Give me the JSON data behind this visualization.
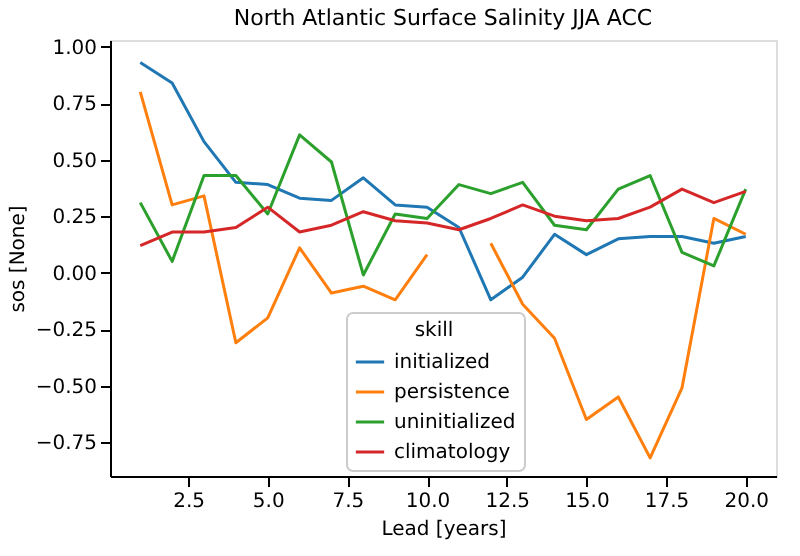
{
  "chart_data": {
    "type": "line",
    "title": "North Atlantic Surface Salinity JJA ACC",
    "xlabel": "Lead [years]",
    "ylabel": "sos [None]",
    "legend_title": "skill",
    "legend": "bottom",
    "grid": false,
    "x": [
      1,
      2,
      3,
      4,
      5,
      6,
      7,
      8,
      9,
      10,
      11,
      12,
      13,
      14,
      15,
      16,
      17,
      18,
      19,
      20
    ],
    "xlim": [
      0.05,
      20.95
    ],
    "xticks": [
      {
        "value": 2.5,
        "label": "2.5"
      },
      {
        "value": 5,
        "label": "5.0"
      },
      {
        "value": 7.5,
        "label": "7.5"
      },
      {
        "value": 10,
        "label": "10.0"
      },
      {
        "value": 12.5,
        "label": "12.5"
      },
      {
        "value": 15,
        "label": "15.0"
      },
      {
        "value": 17.5,
        "label": "17.5"
      },
      {
        "value": 20,
        "label": "20.0"
      }
    ],
    "ylim": [
      -0.9,
      1.03
    ],
    "yticks": [
      {
        "value": -0.75,
        "label": "−0.75"
      },
      {
        "value": -0.5,
        "label": "−0.50"
      },
      {
        "value": -0.25,
        "label": "−0.25"
      },
      {
        "value": 0,
        "label": "0.00"
      },
      {
        "value": 0.25,
        "label": "0.25"
      },
      {
        "value": 0.5,
        "label": "0.50"
      },
      {
        "value": 0.75,
        "label": "0.75"
      },
      {
        "value": 1,
        "label": "1.00"
      }
    ],
    "series": [
      {
        "name": "initialized",
        "color": "#1f77b4",
        "values": [
          0.93,
          0.84,
          0.58,
          0.4,
          0.39,
          0.33,
          0.32,
          0.42,
          0.3,
          0.29,
          0.2,
          -0.12,
          -0.02,
          0.17,
          0.08,
          0.15,
          0.16,
          0.16,
          0.13,
          0.16
        ]
      },
      {
        "name": "persistence",
        "color": "#ff7f0e",
        "values": [
          0.8,
          0.3,
          0.34,
          -0.31,
          -0.2,
          0.11,
          -0.09,
          -0.06,
          -0.12,
          0.08,
          null,
          0.13,
          -0.14,
          -0.29,
          -0.65,
          -0.55,
          -0.82,
          -0.51,
          0.24,
          0.17
        ]
      },
      {
        "name": "uninitialized",
        "color": "#2ca02c",
        "values": [
          0.31,
          0.05,
          0.43,
          0.43,
          0.26,
          0.61,
          0.49,
          -0.01,
          0.26,
          0.24,
          0.39,
          0.35,
          0.4,
          0.21,
          0.19,
          0.37,
          0.43,
          0.09,
          0.03,
          0.37
        ]
      },
      {
        "name": "climatology",
        "color": "#d62728",
        "values": [
          0.12,
          0.18,
          0.18,
          0.2,
          0.29,
          0.18,
          0.21,
          0.27,
          0.23,
          0.22,
          0.19,
          0.24,
          0.3,
          0.25,
          0.23,
          0.24,
          0.29,
          0.37,
          0.31,
          0.36
        ]
      }
    ]
  }
}
